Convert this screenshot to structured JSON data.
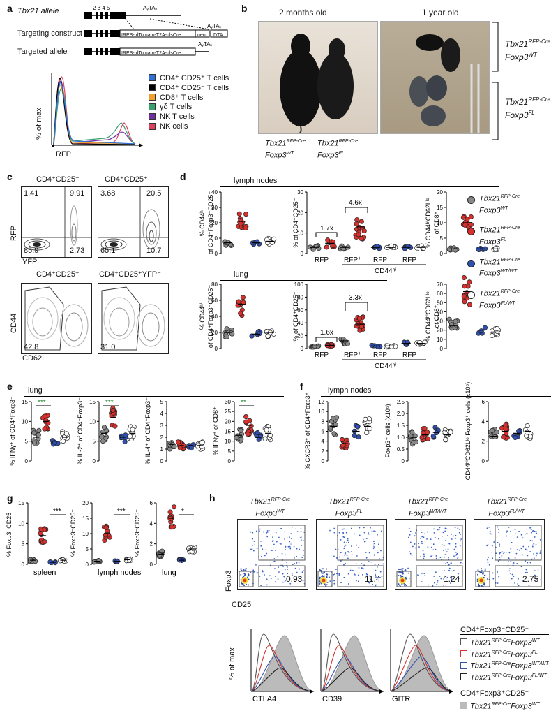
{
  "a": {
    "label": "a",
    "allele_rows": [
      "Tbx21 allele",
      "Targeting construct",
      "Targeted allele"
    ],
    "exons": "2 3 4 5",
    "polyA": "AᵧTAᵧ",
    "cassette": "IRES-tdTomato-T2A-nlsCre",
    "neo": "neo",
    "dta": "DTA",
    "ylabel": "% of max",
    "xlabel": "RFP",
    "legend": [
      {
        "name": "CD4⁺ CD25⁺ T cells",
        "color": "#2f6fd6"
      },
      {
        "name": "CD4⁺ CD25⁻ T cells",
        "color": "#000000"
      },
      {
        "name": "CD8⁺ T cells",
        "color": "#f0a030"
      },
      {
        "name": "γδ T cells",
        "color": "#3aa070"
      },
      {
        "name": "NK T cells",
        "color": "#7030a0"
      },
      {
        "name": "NK cells",
        "color": "#e04060"
      }
    ]
  },
  "b": {
    "label": "b",
    "title_left": "2 months old",
    "title_right": "1 year old",
    "mouse1": [
      "Tbx21",
      "RFP-Cre",
      "Foxp3",
      "WT"
    ],
    "mouse2": [
      "Tbx21",
      "RFP-Cre",
      "Foxp3",
      "FL"
    ],
    "group1": [
      "Tbx21",
      "RFP-Cre",
      "Foxp3",
      "WT"
    ],
    "group2": [
      "Tbx21",
      "RFP-Cre",
      "Foxp3",
      "FL"
    ]
  },
  "c": {
    "label": "c",
    "top_titles": [
      "CD4⁺CD25⁻",
      "CD4⁺CD25⁺"
    ],
    "q1": [
      "1.41",
      "9.91",
      "85.9",
      "2.73"
    ],
    "q2": [
      "3.68",
      "20.5",
      "65.1",
      "10.7"
    ],
    "top_ylabel": "RFP",
    "top_xlabel": "YFP",
    "bottom_titles": [
      "CD4⁺CD25⁺",
      "CD4⁺CD25⁺YFP⁻"
    ],
    "gate1": "42.8",
    "gate2": "31.0",
    "bottom_ylabel": "CD44",
    "bottom_xlabel": "CD62L"
  },
  "d": {
    "label": "d",
    "section1": "lymph nodes",
    "section2": "lung",
    "y1": [
      "% CD44ʰⁱ",
      "of CD4⁺Foxp3⁻CD25⁻"
    ],
    "y2": "% of CD4⁺CD25⁻",
    "y3": [
      "% CD44ʰⁱCD62Lˡᵒ",
      "of CD8⁺"
    ],
    "fold_ln": [
      "1.7x",
      "4.6x"
    ],
    "fold_lung": [
      "1.6x",
      "3.3x"
    ],
    "xcats": [
      "RFP⁻",
      "RFP⁺",
      "RFP⁻",
      "RFP⁺"
    ],
    "xgroup": "CD44ʰⁱ",
    "legend": [
      {
        "main": "Tbx21",
        "sup": "RFP-Cre",
        "sub": "Foxp3",
        "sup2": "WT",
        "color": "#888888"
      },
      {
        "main": "Tbx21",
        "sup": "RFP-Cre",
        "sub": "Foxp3",
        "sup2": "FL",
        "color": "#d8302c"
      },
      {
        "main": "Tbx21",
        "sup": "RFP-Cre",
        "sub": "Foxp3",
        "sup2": "WT/WT",
        "color": "#3050b0"
      },
      {
        "main": "Tbx21",
        "sup": "RFP-Cre",
        "sub": "Foxp3",
        "sup2": "FL/WT",
        "color": "#ffffff"
      }
    ],
    "ticks_a": [
      "0",
      "10",
      "20",
      "30",
      "40"
    ],
    "ticks_b": [
      "0",
      "10",
      "20",
      "30"
    ],
    "ticks_c": [
      "0",
      "5",
      "10",
      "15",
      "20"
    ],
    "ticks_d": [
      "0",
      "20",
      "40",
      "60",
      "80"
    ],
    "ticks_e": [
      "0",
      "10",
      "20",
      "30",
      "40",
      "50",
      "60",
      "70"
    ],
    "ticks_f": [
      "0",
      "20",
      "40",
      "60",
      "80",
      "100"
    ]
  },
  "e": {
    "label": "e",
    "section": "lung",
    "ylabels": [
      "% IFNγ⁺ of CD4⁺Foxp3⁻",
      "% IL-2⁺ of CD4⁺Foxp3⁻",
      "% IL-4⁺ of CD4⁺Foxp3⁻",
      "% IFNγ⁺ of CD8⁺"
    ],
    "stars": [
      "***",
      "***",
      "",
      "**"
    ],
    "ticks": [
      [
        "0",
        "5",
        "10",
        "15"
      ],
      [
        "0",
        "5",
        "10",
        "15"
      ],
      [
        "0",
        "1",
        "2",
        "3",
        "4",
        "5"
      ],
      [
        "0",
        "5",
        "10",
        "15",
        "20",
        "25",
        "30"
      ]
    ]
  },
  "f": {
    "label": "f",
    "section": "lymph nodes",
    "ylabels": [
      "% CXCR3⁺ of CD4⁺Foxp3⁺",
      "Foxp3⁺ cells (x10⁶)",
      "CD44ʰⁱCD62Lˡᵒ Foxp3⁺ cells (x10⁵)"
    ],
    "ticks": [
      [
        "0",
        "2",
        "4",
        "6",
        "8",
        "10",
        "12"
      ],
      [
        "0",
        "0.5",
        "1.0",
        "1.5",
        "2.0",
        "2.5"
      ],
      [
        "0",
        "2",
        "4",
        "6"
      ]
    ]
  },
  "g": {
    "label": "g",
    "ylabel": "% Foxp3⁻CD25⁺",
    "xlabels": [
      "spleen",
      "lymph nodes",
      "lung"
    ],
    "stars": [
      "***",
      "***",
      "*"
    ],
    "ticks": [
      [
        "0",
        "5",
        "10",
        "15"
      ],
      [
        "0",
        "5",
        "10",
        "15",
        "20"
      ],
      [
        "0",
        "2",
        "4",
        "6"
      ]
    ]
  },
  "h": {
    "label": "h",
    "titles": [
      [
        "Tbx21",
        "RFP-Cre",
        "Foxp3",
        "WT"
      ],
      [
        "Tbx21",
        "RFP-Cre",
        "Foxp3",
        "FL"
      ],
      [
        "Tbx21",
        "RFP-Cre",
        "Foxp3",
        "WT/WT"
      ],
      [
        "Tbx21",
        "RFP-Cre",
        "Foxp3",
        "FL/WT"
      ]
    ],
    "gate_values": [
      "0.93",
      "11.4",
      "1.24",
      "2.75"
    ],
    "ylabel": "Foxp3",
    "xlabel": "CD25",
    "hist_ylabel": "% of max",
    "hist_xlabels": [
      "CTLA4",
      "CD39",
      "GITR"
    ],
    "legend_title1": "CD4⁺Foxp3⁻CD25⁺",
    "legend_title2": "CD4⁺Foxp3⁺CD25⁺",
    "legend": [
      {
        "sup2": "WT",
        "color": "#555555"
      },
      {
        "sup2": "FL",
        "color": "#d8302c"
      },
      {
        "sup2": "WT/WT",
        "color": "#3050b0"
      },
      {
        "sup2": "FL/WT",
        "color": "#222222"
      }
    ],
    "legend_grey": {
      "sup2": "WT",
      "color": "#bbbbbb"
    }
  }
}
